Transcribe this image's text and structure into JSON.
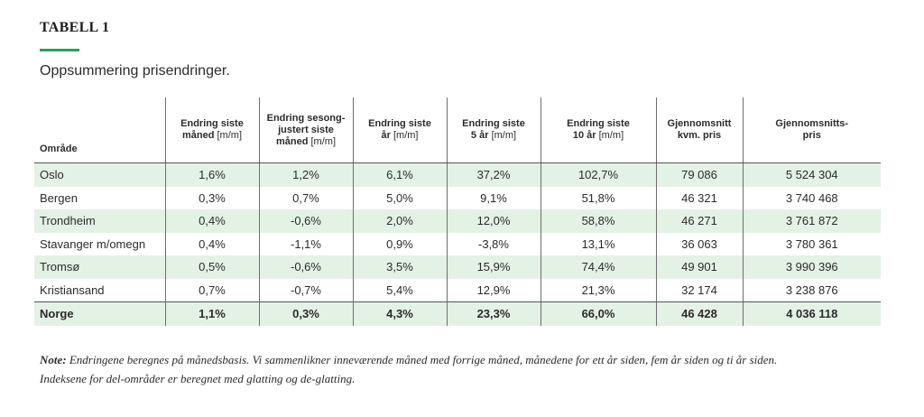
{
  "header": {
    "label": "TABELL 1",
    "subtitle": "Oppsummering prisendringer."
  },
  "table": {
    "columns": [
      {
        "lines": [
          "Område"
        ],
        "unit": ""
      },
      {
        "lines": [
          "Endring siste",
          "måned "
        ],
        "unit": "[m/m]"
      },
      {
        "lines": [
          "Endring sesong-",
          "justert siste",
          "måned "
        ],
        "unit": "[m/m]"
      },
      {
        "lines": [
          "Endring siste",
          "år "
        ],
        "unit": "[m/m]"
      },
      {
        "lines": [
          "Endring siste",
          "5 år "
        ],
        "unit": "[m/m]"
      },
      {
        "lines": [
          "Endring siste",
          "10 år "
        ],
        "unit": "[m/m]"
      },
      {
        "lines": [
          "Gjennomsnitt",
          "kvm. pris"
        ],
        "unit": ""
      },
      {
        "lines": [
          "Gjennomsnitts-",
          "pris"
        ],
        "unit": ""
      }
    ],
    "rows": [
      [
        "Oslo",
        "1,6%",
        "1,2%",
        "6,1%",
        "37,2%",
        "102,7%",
        "79 086",
        "5 524 304"
      ],
      [
        "Bergen",
        "0,3%",
        "0,7%",
        "5,0%",
        "9,1%",
        "51,8%",
        "46 321",
        "3 740 468"
      ],
      [
        "Trondheim",
        "0,4%",
        "-0,6%",
        "2,0%",
        "12,0%",
        "58,8%",
        "46 271",
        "3 761 872"
      ],
      [
        "Stavanger m/omegn",
        "0,4%",
        "-1,1%",
        "0,9%",
        "-3,8%",
        "13,1%",
        "36 063",
        "3 780 361"
      ],
      [
        "Tromsø",
        "0,5%",
        "-0,6%",
        "3,5%",
        "15,9%",
        "74,4%",
        "49 901",
        "3 990 396"
      ],
      [
        "Kristiansand",
        "0,7%",
        "-0,7%",
        "5,4%",
        "12,9%",
        "21,3%",
        "32 174",
        "3 238 876"
      ]
    ],
    "total": [
      "Norge",
      "1,1%",
      "0,3%",
      "4,3%",
      "23,3%",
      "66,0%",
      "46 428",
      "4 036 118"
    ]
  },
  "note": {
    "label": "Note:",
    "line1": " Endringene beregnes på månedsbasis. Vi sammenlikner inneværende måned med forrige måned, månedene for ett år siden, fem år siden og ti år siden.",
    "line2": "Indeksene for del-områder er beregnet med glatting og de-glatting."
  },
  "colors": {
    "accent": "#2e9d5a",
    "row_shade": "#e4f1e5"
  }
}
